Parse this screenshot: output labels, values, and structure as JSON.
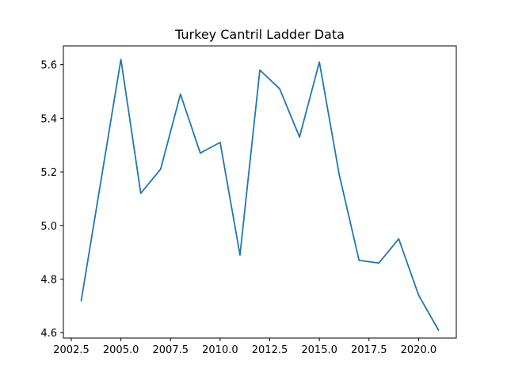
{
  "chart_data": {
    "type": "line",
    "title": "Turkey Cantril Ladder Data",
    "xlabel": "",
    "ylabel": "",
    "xlim": [
      2002.1,
      2021.9
    ],
    "ylim": [
      4.58,
      5.67
    ],
    "x_ticks": [
      2002.5,
      2005.0,
      2007.5,
      2010.0,
      2012.5,
      2015.0,
      2017.5,
      2020.0
    ],
    "x_tick_labels": [
      "2002.5",
      "2005.0",
      "2007.5",
      "2010.0",
      "2012.5",
      "2015.0",
      "2017.5",
      "2020.0"
    ],
    "y_ticks": [
      4.6,
      4.8,
      5.0,
      5.2,
      5.4,
      5.6
    ],
    "y_tick_labels": [
      "4.6",
      "4.8",
      "5.0",
      "5.2",
      "5.4",
      "5.6"
    ],
    "grid": false,
    "series": [
      {
        "color": "#1f77b4",
        "x": [
          2003,
          2004,
          2005,
          2006,
          2007,
          2008,
          2009,
          2010,
          2011,
          2012,
          2013,
          2014,
          2015,
          2016,
          2017,
          2018,
          2019,
          2020,
          2021
        ],
        "y": [
          4.72,
          5.17,
          5.62,
          5.12,
          5.21,
          5.49,
          5.27,
          5.31,
          4.89,
          5.58,
          5.51,
          5.33,
          5.61,
          5.19,
          4.87,
          4.86,
          4.95,
          4.74,
          4.61
        ]
      }
    ]
  }
}
